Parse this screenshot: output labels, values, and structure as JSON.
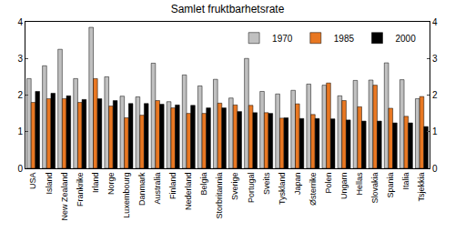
{
  "chart_data": {
    "type": "bar",
    "title": "Samlet fruktbarhetsrate",
    "categories": [
      "USA",
      "Island",
      "New Zealand",
      "Frankrike",
      "Irland",
      "Norge",
      "Luxembourg",
      "Danmark",
      "Australia",
      "Finland",
      "Nederland",
      "Belgia",
      "Storbritannia",
      "Sverige",
      "Portugal",
      "Sveits",
      "Tyskland",
      "Japan",
      "Østerrike",
      "Polen",
      "Ungarn",
      "Hellas",
      "Slovakia",
      "Spania",
      "Italia",
      "Tsjekkia"
    ],
    "series": [
      {
        "name": "1970",
        "color": "#c0c0c0",
        "values": [
          2.45,
          2.8,
          3.25,
          2.45,
          3.85,
          2.5,
          1.97,
          1.95,
          2.87,
          1.82,
          2.55,
          2.25,
          2.43,
          1.92,
          3.0,
          2.1,
          2.03,
          2.13,
          2.3,
          2.27,
          1.98,
          2.4,
          2.41,
          2.88,
          2.42,
          1.9
        ]
      },
      {
        "name": "1985",
        "color": "#e87722",
        "values": [
          1.8,
          1.9,
          1.9,
          1.8,
          2.45,
          1.7,
          1.38,
          1.45,
          1.85,
          1.65,
          1.5,
          1.5,
          1.78,
          1.73,
          1.72,
          1.52,
          1.37,
          1.76,
          1.47,
          2.33,
          1.85,
          1.68,
          2.27,
          1.64,
          1.42,
          1.96
        ]
      },
      {
        "name": "2000",
        "color": "#000000",
        "values": [
          2.1,
          2.05,
          1.98,
          1.88,
          1.9,
          1.85,
          1.77,
          1.77,
          1.75,
          1.73,
          1.72,
          1.65,
          1.65,
          1.55,
          1.52,
          1.5,
          1.38,
          1.36,
          1.36,
          1.35,
          1.32,
          1.29,
          1.29,
          1.24,
          1.24,
          1.14
        ]
      }
    ],
    "ylim": [
      0,
      4
    ],
    "yticks": [
      0,
      1,
      2,
      3,
      4
    ],
    "y2lim": [
      0,
      4
    ],
    "y2ticks": [
      0,
      1,
      2,
      3,
      4
    ],
    "grid": false,
    "legend": "top right"
  }
}
